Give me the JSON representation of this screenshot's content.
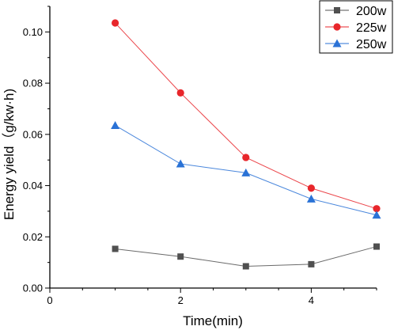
{
  "chart_data": {
    "type": "line",
    "title": "",
    "xlabel": "Time(min)",
    "ylabel": "Energy yield（g/kw·h)",
    "xlim": [
      0,
      5
    ],
    "ylim": [
      0.0,
      0.11
    ],
    "x_ticks": [
      "0",
      "2",
      "4"
    ],
    "x_tick_values": [
      0,
      2,
      4
    ],
    "y_ticks": [
      "0.00",
      "0.02",
      "0.04",
      "0.06",
      "0.08",
      "0.10"
    ],
    "y_tick_values": [
      0.0,
      0.02,
      0.04,
      0.06,
      0.08,
      0.1
    ],
    "grid": false,
    "legend_position": "top-right",
    "series": [
      {
        "name": "200w",
        "color": "#505050",
        "marker": "square",
        "x": [
          1,
          2,
          3,
          4,
          5
        ],
        "y": [
          0.0153,
          0.0123,
          0.0085,
          0.0093,
          0.0162
        ]
      },
      {
        "name": "225w",
        "color": "#e8262b",
        "marker": "circle",
        "x": [
          1,
          2,
          3,
          4,
          5
        ],
        "y": [
          0.1035,
          0.0762,
          0.051,
          0.039,
          0.031
        ]
      },
      {
        "name": "250w",
        "color": "#2a72d6",
        "marker": "triangle",
        "x": [
          1,
          2,
          3,
          4,
          5
        ],
        "y": [
          0.0635,
          0.0485,
          0.045,
          0.0348,
          0.0285
        ]
      }
    ]
  }
}
